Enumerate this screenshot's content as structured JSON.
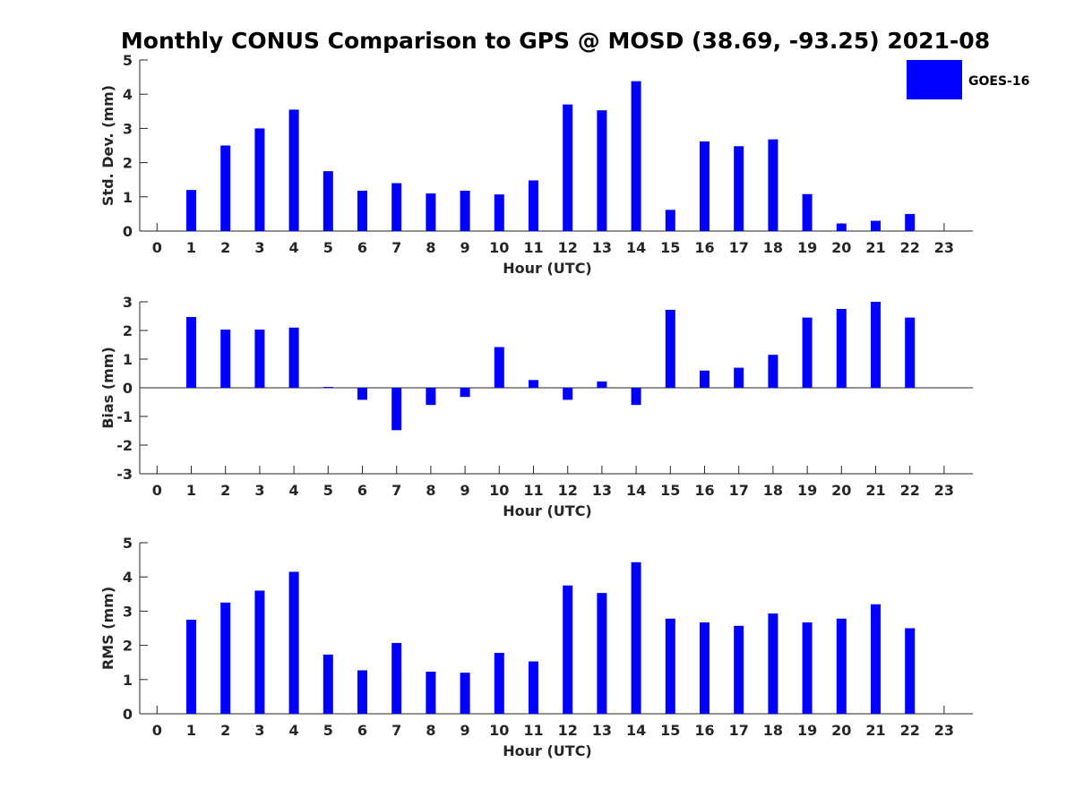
{
  "chart_data": {
    "title": "Monthly CONUS Comparison to GPS @ MOSD (38.69, -93.25) 2021-08",
    "legend": {
      "label": "GOES-16",
      "color": "#0000ff",
      "placement": "top-right"
    },
    "panels": [
      {
        "type": "bar",
        "xlabel": "Hour (UTC)",
        "ylabel": "Std. Dev. (mm)",
        "x": [
          0,
          1,
          2,
          3,
          4,
          5,
          6,
          7,
          8,
          9,
          10,
          11,
          12,
          13,
          14,
          15,
          16,
          17,
          18,
          19,
          20,
          21,
          22,
          23
        ],
        "x_ticks": [
          "0",
          "1",
          "2",
          "3",
          "4",
          "5",
          "6",
          "7",
          "8",
          "9",
          "10",
          "11",
          "12",
          "13",
          "14",
          "15",
          "16",
          "17",
          "18",
          "19",
          "20",
          "21",
          "22",
          "23"
        ],
        "values": [
          null,
          1.2,
          2.5,
          3.0,
          3.55,
          1.75,
          1.18,
          1.4,
          1.1,
          1.18,
          1.07,
          1.48,
          3.7,
          3.53,
          4.38,
          0.62,
          2.62,
          2.48,
          2.68,
          1.08,
          0.22,
          0.3,
          0.5,
          null
        ],
        "ylim": [
          0,
          5
        ],
        "y_ticks": [
          "0",
          "1",
          "2",
          "3",
          "4",
          "5"
        ],
        "grid": false
      },
      {
        "type": "bar",
        "xlabel": "Hour (UTC)",
        "ylabel": "Bias (mm)",
        "x": [
          0,
          1,
          2,
          3,
          4,
          5,
          6,
          7,
          8,
          9,
          10,
          11,
          12,
          13,
          14,
          15,
          16,
          17,
          18,
          19,
          20,
          21,
          22,
          23
        ],
        "x_ticks": [
          "0",
          "1",
          "2",
          "3",
          "4",
          "5",
          "6",
          "7",
          "8",
          "9",
          "10",
          "11",
          "12",
          "13",
          "14",
          "15",
          "16",
          "17",
          "18",
          "19",
          "20",
          "21",
          "22",
          "23"
        ],
        "values": [
          null,
          2.47,
          2.03,
          2.03,
          2.1,
          0.03,
          -0.42,
          -1.48,
          -0.6,
          -0.32,
          1.42,
          0.27,
          -0.42,
          0.22,
          -0.6,
          2.72,
          0.6,
          0.7,
          1.15,
          2.45,
          2.75,
          3.0,
          2.45,
          null
        ],
        "ylim": [
          -3,
          3
        ],
        "y_ticks": [
          "-3",
          "-2",
          "-1",
          "0",
          "1",
          "2",
          "3"
        ],
        "grid": false
      },
      {
        "type": "bar",
        "xlabel": "Hour (UTC)",
        "ylabel": "RMS (mm)",
        "x": [
          0,
          1,
          2,
          3,
          4,
          5,
          6,
          7,
          8,
          9,
          10,
          11,
          12,
          13,
          14,
          15,
          16,
          17,
          18,
          19,
          20,
          21,
          22,
          23
        ],
        "x_ticks": [
          "0",
          "1",
          "2",
          "3",
          "4",
          "5",
          "6",
          "7",
          "8",
          "9",
          "10",
          "11",
          "12",
          "13",
          "14",
          "15",
          "16",
          "17",
          "18",
          "19",
          "20",
          "21",
          "22",
          "23"
        ],
        "values": [
          null,
          2.75,
          3.25,
          3.6,
          4.15,
          1.73,
          1.27,
          2.07,
          1.23,
          1.2,
          1.78,
          1.53,
          3.75,
          3.53,
          4.43,
          2.78,
          2.67,
          2.57,
          2.93,
          2.67,
          2.78,
          3.2,
          2.5,
          null
        ],
        "ylim": [
          0,
          5
        ],
        "y_ticks": [
          "0",
          "1",
          "2",
          "3",
          "4",
          "5"
        ],
        "grid": false
      }
    ]
  }
}
